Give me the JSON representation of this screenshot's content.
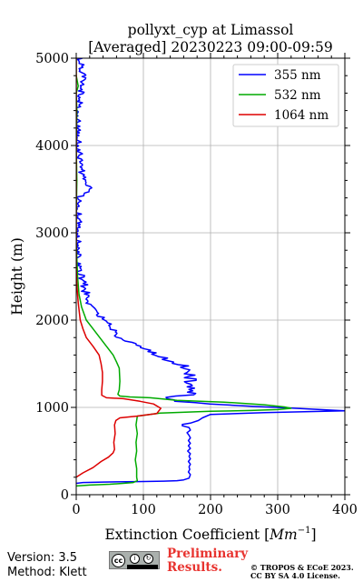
{
  "chart_data": {
    "type": "line",
    "title": "pollyxt_cyp at Limassol",
    "subtitle": "[Averaged] 20230223 09:00-09:59",
    "xlabel_text": "Extinction Coefficient [",
    "xlabel_unit": "Mm",
    "xlabel_exp": "−1",
    "xlabel_close": "]",
    "ylabel": "Height (m)",
    "xlim": [
      0,
      400
    ],
    "ylim": [
      0,
      5000
    ],
    "xticks": [
      0,
      100,
      200,
      300,
      400
    ],
    "yticks": [
      0,
      1000,
      2000,
      3000,
      4000,
      5000
    ],
    "grid": true,
    "legend_position": "top-right",
    "series": [
      {
        "name": "355 nm",
        "color": "#0000ff",
        "points": [
          [
            0,
            130
          ],
          [
            10,
            140
          ],
          [
            40,
            145
          ],
          [
            90,
            150
          ],
          [
            130,
            155
          ],
          [
            150,
            160
          ],
          [
            160,
            170
          ],
          [
            168,
            190
          ],
          [
            170,
            230
          ],
          [
            167,
            260
          ],
          [
            169,
            290
          ],
          [
            168,
            320
          ],
          [
            170,
            350
          ],
          [
            167,
            380
          ],
          [
            170,
            410
          ],
          [
            168,
            440
          ],
          [
            170,
            470
          ],
          [
            166,
            500
          ],
          [
            170,
            530
          ],
          [
            167,
            560
          ],
          [
            170,
            590
          ],
          [
            167,
            620
          ],
          [
            170,
            650
          ],
          [
            168,
            680
          ],
          [
            165,
            710
          ],
          [
            170,
            740
          ],
          [
            168,
            770
          ],
          [
            158,
            790
          ],
          [
            158,
            805
          ],
          [
            170,
            820
          ],
          [
            182,
            850
          ],
          [
            188,
            880
          ],
          [
            200,
            920
          ],
          [
            280,
            940
          ],
          [
            400,
            960
          ]
        ]
      },
      {
        "name": "532 nm",
        "color": "#00aa00",
        "points": [
          [
            0,
            100
          ],
          [
            20,
            110
          ],
          [
            50,
            120
          ],
          [
            70,
            130
          ],
          [
            85,
            140
          ],
          [
            91,
            160
          ],
          [
            90,
            200
          ],
          [
            90,
            300
          ],
          [
            88,
            400
          ],
          [
            90,
            500
          ],
          [
            89,
            600
          ],
          [
            91,
            700
          ],
          [
            89,
            800
          ],
          [
            91,
            900
          ],
          [
            125,
            935
          ],
          [
            200,
            955
          ],
          [
            260,
            965
          ],
          [
            300,
            975
          ],
          [
            320,
            990
          ],
          [
            310,
            1005
          ],
          [
            280,
            1030
          ],
          [
            220,
            1060
          ],
          [
            150,
            1080
          ],
          [
            110,
            1110
          ],
          [
            80,
            1120
          ],
          [
            65,
            1130
          ],
          [
            62,
            1150
          ],
          [
            64,
            1200
          ],
          [
            65,
            1300
          ],
          [
            64,
            1450
          ],
          [
            60,
            1520
          ],
          [
            55,
            1600
          ],
          [
            45,
            1700
          ],
          [
            35,
            1800
          ],
          [
            25,
            1900
          ],
          [
            15,
            2000
          ],
          [
            8,
            2150
          ],
          [
            4,
            2300
          ],
          [
            2,
            2500
          ],
          [
            1,
            2700
          ],
          [
            0,
            2900
          ],
          [
            0,
            3200
          ],
          [
            1,
            3600
          ],
          [
            0,
            4000
          ],
          [
            1,
            4400
          ],
          [
            0,
            4600
          ],
          [
            3,
            4680
          ],
          [
            0,
            4800
          ],
          [
            0,
            5000
          ]
        ]
      },
      {
        "name": "1064 nm",
        "color": "#dd0000",
        "points": [
          [
            0,
            200
          ],
          [
            10,
            250
          ],
          [
            25,
            310
          ],
          [
            37,
            380
          ],
          [
            48,
            430
          ],
          [
            55,
            480
          ],
          [
            57,
            520
          ],
          [
            56,
            600
          ],
          [
            58,
            700
          ],
          [
            57,
            800
          ],
          [
            59,
            850
          ],
          [
            65,
            880
          ],
          [
            90,
            900
          ],
          [
            120,
            930
          ],
          [
            126,
            990
          ],
          [
            115,
            1040
          ],
          [
            95,
            1070
          ],
          [
            70,
            1100
          ],
          [
            45,
            1110
          ],
          [
            38,
            1140
          ],
          [
            38,
            1200
          ],
          [
            39,
            1300
          ],
          [
            39,
            1400
          ],
          [
            37,
            1500
          ],
          [
            34,
            1600
          ],
          [
            25,
            1700
          ],
          [
            15,
            1800
          ],
          [
            10,
            1900
          ],
          [
            6,
            2000
          ],
          [
            3,
            2200
          ],
          [
            1,
            2400
          ],
          [
            0,
            2600
          ],
          [
            0,
            3000
          ],
          [
            0,
            3500
          ],
          [
            0,
            4000
          ],
          [
            0,
            4500
          ],
          [
            0,
            5000
          ]
        ]
      }
    ]
  },
  "footer": {
    "version": "Version: 3.5",
    "method": "Method: Klett",
    "license_badge": "cc-by-sa-icon",
    "preliminary_line1": "Preliminary",
    "preliminary_line2": "Results.",
    "copyright_line1": "© TROPOS & ECoE 2023.",
    "copyright_line2": "CC BY SA 4.0 License."
  }
}
